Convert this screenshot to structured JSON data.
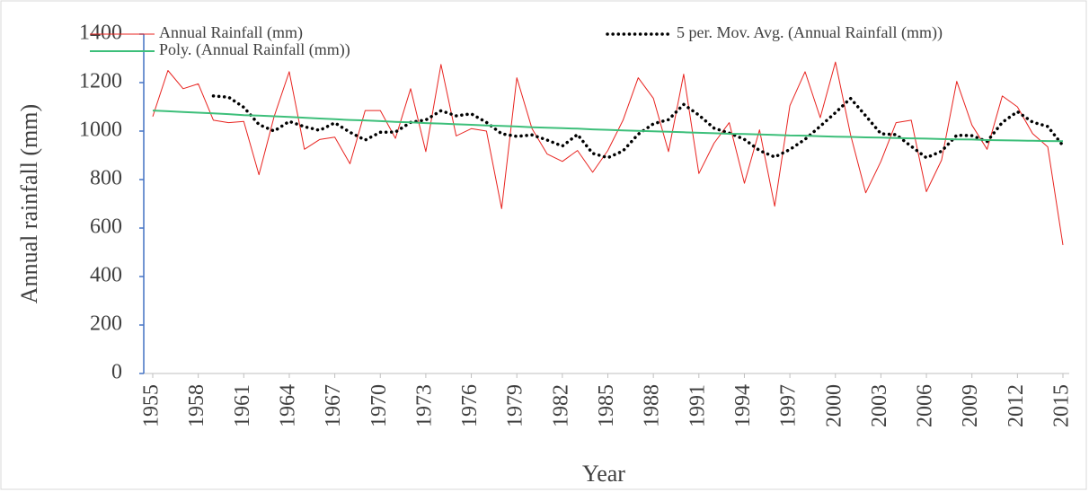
{
  "chart_data": {
    "type": "line",
    "x_label": "Year",
    "y_label": "Annual rainfall (mm)",
    "x": [
      1955,
      1956,
      1957,
      1958,
      1959,
      1960,
      1961,
      1962,
      1963,
      1964,
      1965,
      1966,
      1967,
      1968,
      1969,
      1970,
      1971,
      1972,
      1973,
      1974,
      1975,
      1976,
      1977,
      1978,
      1979,
      1980,
      1981,
      1982,
      1983,
      1984,
      1985,
      1986,
      1987,
      1988,
      1989,
      1990,
      1991,
      1992,
      1993,
      1994,
      1995,
      1996,
      1997,
      1998,
      1999,
      2000,
      2001,
      2002,
      2003,
      2004,
      2005,
      2006,
      2007,
      2008,
      2009,
      2010,
      2011,
      2012,
      2013,
      2014,
      2015
    ],
    "xlim": [
      1955,
      2015
    ],
    "xticks": [
      1955,
      1958,
      1961,
      1964,
      1967,
      1970,
      1973,
      1976,
      1979,
      1982,
      1985,
      1988,
      1991,
      1994,
      1997,
      2000,
      2003,
      2006,
      2009,
      2012,
      2015
    ],
    "ylim": [
      0,
      1400
    ],
    "yticks": [
      0,
      200,
      400,
      600,
      800,
      1000,
      1200,
      1400
    ],
    "series": [
      {
        "name": "Annual Rainfall (mm)",
        "color": "#e8231f",
        "dash": "solid",
        "values": [
          1060,
          1250,
          1175,
          1195,
          1045,
          1035,
          1040,
          820,
          1060,
          1245,
          925,
          965,
          975,
          865,
          1085,
          1085,
          970,
          1175,
          915,
          1275,
          980,
          1010,
          1000,
          680,
          1220,
          1010,
          905,
          875,
          920,
          830,
          920,
          1045,
          1220,
          1135,
          915,
          1235,
          825,
          950,
          1035,
          785,
          1005,
          690,
          1105,
          1245,
          1055,
          1285,
          985,
          745,
          875,
          1035,
          1045,
          750,
          880,
          1205,
          1025,
          925,
          1145,
          1100,
          990,
          935,
          530
        ]
      },
      {
        "name": "5 per. Mov. Avg. (Annual Rainfall (mm))",
        "color": "#000000",
        "dash": "dotted",
        "values": [
          null,
          null,
          null,
          null,
          1145,
          1140,
          1098,
          1027,
          1000,
          1040,
          1018,
          1003,
          1034,
          995,
          963,
          995,
          996,
          1036,
          1046,
          1084,
          1063,
          1071,
          1036,
          989,
          978,
          984,
          963,
          938,
          986,
          908,
          890,
          918,
          987,
          1030,
          1047,
          1110,
          1066,
          1012,
          992,
          966,
          920,
          893,
          924,
          966,
          1020,
          1076,
          1135,
          1063,
          989,
          985,
          937,
          890,
          917,
          983,
          981,
          957,
          1036,
          1080,
          1037,
          1019,
          940
        ]
      },
      {
        "name": "Poly. (Annual Rainfall (mm))",
        "color": "#3dbf7a",
        "dash": "solid",
        "values": [
          1085,
          1082,
          1079,
          1076,
          1073,
          1070,
          1066,
          1064,
          1061,
          1058,
          1055,
          1052,
          1049,
          1046,
          1044,
          1041,
          1038,
          1036,
          1033,
          1031,
          1028,
          1026,
          1023,
          1021,
          1019,
          1016,
          1014,
          1012,
          1010,
          1007,
          1005,
          1003,
          1001,
          999,
          997,
          995,
          993,
          991,
          989,
          988,
          986,
          984,
          982,
          981,
          979,
          977,
          976,
          974,
          973,
          971,
          970,
          969,
          967,
          966,
          965,
          963,
          962,
          961,
          960,
          959,
          958
        ]
      }
    ]
  }
}
